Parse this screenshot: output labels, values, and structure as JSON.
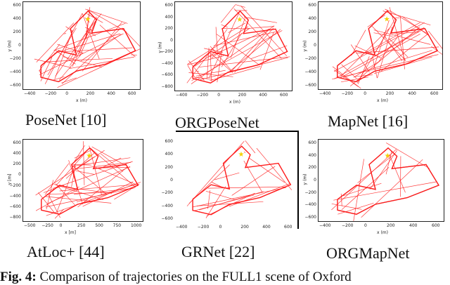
{
  "panels": [
    {
      "id": "p1",
      "label": "PoseNet [10]",
      "xlabel": "x (m)",
      "ylabel": "y (m)",
      "xticks": [
        "−400",
        "−200",
        "0",
        "200",
        "400",
        "600"
      ],
      "yticks": [
        "600",
        "400",
        "200",
        "0",
        "−200",
        "−400",
        "−600"
      ]
    },
    {
      "id": "p2",
      "label": "ORGPoseNet",
      "xlabel": "x (m)",
      "ylabel": "y (m)",
      "xticks": [
        "−400",
        "−200",
        "0",
        "200",
        "400",
        "600"
      ],
      "yticks": [
        "600",
        "400",
        "200",
        "0",
        "−200",
        "−400",
        "−600",
        "−800"
      ]
    },
    {
      "id": "p3",
      "label": "MapNet [16]",
      "xlabel": "x (m)",
      "ylabel": "y (m)",
      "xticks": [
        "−400",
        "−200",
        "0",
        "200",
        "400",
        "600"
      ],
      "yticks": [
        "600",
        "400",
        "200",
        "0",
        "−200",
        "−400",
        "−600"
      ]
    },
    {
      "id": "p4",
      "label": "AtLoc+ [44]",
      "xlabel": "x [m]",
      "ylabel": "y [m]",
      "xticks": [
        "−500",
        "−250",
        "0",
        "250",
        "500",
        "750",
        "1000"
      ],
      "yticks": [
        "600",
        "400",
        "200",
        "0",
        "−200",
        "−400",
        "−600",
        "−800"
      ]
    },
    {
      "id": "p5",
      "label": "GRNet [22]",
      "xlabel": "",
      "ylabel": "",
      "xticks": [
        "−400",
        "−200",
        "0",
        "200",
        "400",
        "600"
      ],
      "yticks": [
        "600",
        "400",
        "200",
        "0",
        "−200",
        "−400",
        "−600"
      ]
    },
    {
      "id": "p6",
      "label": "ORGMapNet",
      "xlabel": "x (m)",
      "ylabel": "y (m)",
      "xticks": [
        "−400",
        "−200",
        "0",
        "200",
        "400",
        "600"
      ],
      "yticks": [
        "600",
        "400",
        "200",
        "0",
        "−200",
        "−400",
        "−600"
      ]
    }
  ],
  "figure_caption": {
    "prefix": "Fig. 4:",
    "text": "Comparison of trajectories on the FULL1 scene of Oxford"
  },
  "colors": {
    "trajectory": "#ff1a1a",
    "ground_truth": "#1a1a1a",
    "start_marker": "#f4d000"
  }
}
